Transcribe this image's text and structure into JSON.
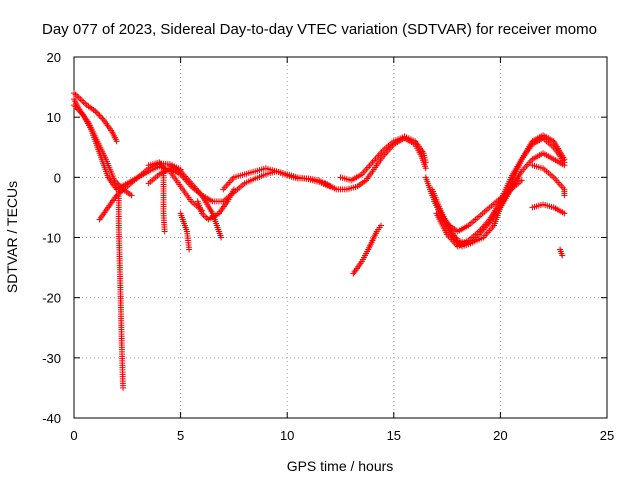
{
  "chart_data": {
    "type": "scatter",
    "title": "Day 077 of 2023, Sidereal Day-to-day VTEC variation (SDTVAR) for receiver momo",
    "xlabel": "GPS time / hours",
    "ylabel": "SDTVAR / TECUs",
    "xlim": [
      0,
      25
    ],
    "ylim": [
      -40,
      20
    ],
    "grid": true,
    "marker": "+",
    "x_ticks": [
      "0",
      "5",
      "10",
      "15",
      "20",
      "25"
    ],
    "y_ticks": [
      "20",
      "10",
      "0",
      "-10",
      "-20",
      "-30",
      "-40"
    ],
    "series": [
      {
        "name": "SDTVAR",
        "color": "#ff0000",
        "tracks": [
          [
            [
              0,
              14
            ],
            [
              0.3,
              13
            ],
            [
              0.6,
              12
            ],
            [
              1,
              11
            ],
            [
              1.4,
              9.5
            ],
            [
              1.8,
              7.5
            ],
            [
              2,
              6
            ]
          ],
          [
            [
              0,
              13
            ],
            [
              0.3,
              11
            ],
            [
              0.7,
              9
            ],
            [
              1.1,
              6
            ],
            [
              1.5,
              3
            ],
            [
              1.9,
              -0.5
            ],
            [
              2.3,
              -2
            ],
            [
              2.7,
              -3
            ]
          ],
          [
            [
              0,
              12
            ],
            [
              0.4,
              10.5
            ],
            [
              0.8,
              8
            ],
            [
              1.2,
              4
            ],
            [
              1.6,
              0
            ],
            [
              2,
              -2
            ],
            [
              2.5,
              -1
            ],
            [
              3,
              0
            ],
            [
              3.5,
              1.5
            ],
            [
              4,
              2.3
            ],
            [
              4.5,
              2.2
            ],
            [
              5,
              1.3
            ]
          ],
          [
            [
              1.2,
              -7
            ],
            [
              1.6,
              -5
            ],
            [
              2,
              -3
            ],
            [
              2.5,
              -1.5
            ],
            [
              3,
              0
            ],
            [
              3.5,
              1
            ],
            [
              4,
              1.8
            ],
            [
              4.5,
              1
            ],
            [
              5,
              -1.5
            ],
            [
              5.5,
              -4
            ],
            [
              6,
              -5.5
            ]
          ],
          [
            [
              2.1,
              -2
            ],
            [
              2.1,
              -8
            ],
            [
              2.15,
              -15
            ],
            [
              2.2,
              -22
            ],
            [
              2.25,
              -29
            ],
            [
              2.3,
              -35
            ]
          ],
          [
            [
              3.5,
              2
            ],
            [
              4,
              2.5
            ],
            [
              4.3,
              1.2
            ]
          ],
          [
            [
              4.2,
              1
            ],
            [
              4.2,
              -3
            ],
            [
              4.2,
              -6
            ],
            [
              4.25,
              -9
            ]
          ],
          [
            [
              5,
              -6
            ],
            [
              5.3,
              -9
            ],
            [
              5.4,
              -12
            ]
          ],
          [
            [
              3.5,
              -1
            ],
            [
              4,
              0.5
            ],
            [
              4.5,
              1.5
            ],
            [
              5,
              0.5
            ],
            [
              5.5,
              -1.5
            ],
            [
              6,
              -3
            ],
            [
              6.5,
              -6
            ],
            [
              6.9,
              -10
            ]
          ],
          [
            [
              4.5,
              2
            ],
            [
              5,
              1
            ],
            [
              5.5,
              -1
            ],
            [
              6,
              -3
            ],
            [
              6.5,
              -4
            ],
            [
              7,
              -4
            ],
            [
              7.5,
              -2.5
            ],
            [
              8,
              -1
            ],
            [
              8.5,
              -0.2
            ],
            [
              9,
              0.5
            ],
            [
              9.5,
              1
            ],
            [
              10,
              0.5
            ],
            [
              10.5,
              0
            ],
            [
              11,
              -0.3
            ],
            [
              11.5,
              -0.8
            ],
            [
              12,
              -1.5
            ]
          ],
          [
            [
              5.8,
              -4
            ],
            [
              6,
              -6
            ],
            [
              6.3,
              -7
            ],
            [
              6.8,
              -6
            ],
            [
              7.2,
              -4
            ],
            [
              7.5,
              -2
            ]
          ],
          [
            [
              7,
              -2
            ],
            [
              7.5,
              0
            ],
            [
              8,
              0.5
            ],
            [
              8.5,
              1
            ],
            [
              9,
              1.5
            ],
            [
              9.5,
              1
            ],
            [
              10,
              0.3
            ],
            [
              10.5,
              -0.2
            ],
            [
              11,
              -0.2
            ],
            [
              11.5,
              -0.5
            ],
            [
              12,
              -1.5
            ]
          ],
          [
            [
              11.8,
              -1
            ],
            [
              12.3,
              -2
            ],
            [
              12.8,
              -2
            ],
            [
              13.3,
              -1.5
            ],
            [
              13.7,
              -0.5
            ],
            [
              14,
              1
            ],
            [
              14.5,
              3.5
            ],
            [
              15,
              5.5
            ],
            [
              15.5,
              6.5
            ],
            [
              16,
              5.5
            ],
            [
              16.3,
              3.5
            ],
            [
              16.5,
              1.5
            ]
          ],
          [
            [
              12.5,
              0
            ],
            [
              13,
              -0.5
            ],
            [
              13.5,
              0.5
            ],
            [
              14,
              2.5
            ],
            [
              14.5,
              4.5
            ],
            [
              15,
              6
            ],
            [
              15.5,
              6.8
            ],
            [
              16,
              6
            ],
            [
              16.4,
              4
            ],
            [
              16.5,
              2.5
            ]
          ],
          [
            [
              13.1,
              -16
            ],
            [
              13.5,
              -14
            ],
            [
              13.8,
              -12
            ],
            [
              14,
              -10.5
            ],
            [
              14.2,
              -9
            ],
            [
              14.4,
              -8
            ]
          ],
          [
            [
              16.5,
              0
            ],
            [
              16.8,
              -3
            ],
            [
              17.2,
              -6
            ],
            [
              17.6,
              -8
            ],
            [
              18,
              -9
            ],
            [
              18.5,
              -8
            ],
            [
              19,
              -6.5
            ],
            [
              19.5,
              -5
            ],
            [
              20,
              -3.5
            ],
            [
              20.5,
              -2
            ],
            [
              21,
              -0.5
            ]
          ],
          [
            [
              16.8,
              -2
            ],
            [
              17.2,
              -5.5
            ],
            [
              17.6,
              -8.5
            ],
            [
              18,
              -10.5
            ],
            [
              18.5,
              -11
            ],
            [
              19,
              -9.5
            ],
            [
              19.5,
              -7.5
            ],
            [
              20,
              -5
            ],
            [
              20.5,
              -2
            ],
            [
              21,
              1
            ],
            [
              21.5,
              3
            ],
            [
              22,
              4
            ],
            [
              22.5,
              3
            ],
            [
              23,
              2
            ]
          ],
          [
            [
              16.9,
              -4
            ],
            [
              17.3,
              -7
            ],
            [
              17.8,
              -10
            ],
            [
              18.2,
              -11.5
            ],
            [
              18.6,
              -11
            ],
            [
              19.2,
              -10
            ],
            [
              19.7,
              -8
            ],
            [
              20,
              -5
            ],
            [
              20.5,
              -1
            ],
            [
              21,
              3
            ],
            [
              21.5,
              5.5
            ],
            [
              22,
              6.5
            ],
            [
              22.5,
              5
            ],
            [
              23,
              2.5
            ]
          ],
          [
            [
              17,
              -6
            ],
            [
              17.5,
              -9.5
            ],
            [
              18,
              -11.5
            ],
            [
              18.5,
              -10.5
            ],
            [
              19,
              -9
            ],
            [
              19.5,
              -7
            ],
            [
              20,
              -4
            ],
            [
              20.5,
              0
            ],
            [
              21,
              3
            ],
            [
              21.5,
              6
            ],
            [
              22,
              7
            ],
            [
              22.5,
              6
            ],
            [
              23,
              3
            ]
          ],
          [
            [
              21.5,
              2
            ],
            [
              22,
              1.5
            ],
            [
              22.5,
              0
            ],
            [
              23,
              -2
            ],
            [
              23,
              -3
            ]
          ],
          [
            [
              21.5,
              -5
            ],
            [
              22,
              -4.5
            ],
            [
              22.5,
              -5
            ],
            [
              23,
              -6
            ]
          ],
          [
            [
              22.8,
              -12
            ],
            [
              22.9,
              -13
            ]
          ]
        ]
      }
    ]
  }
}
